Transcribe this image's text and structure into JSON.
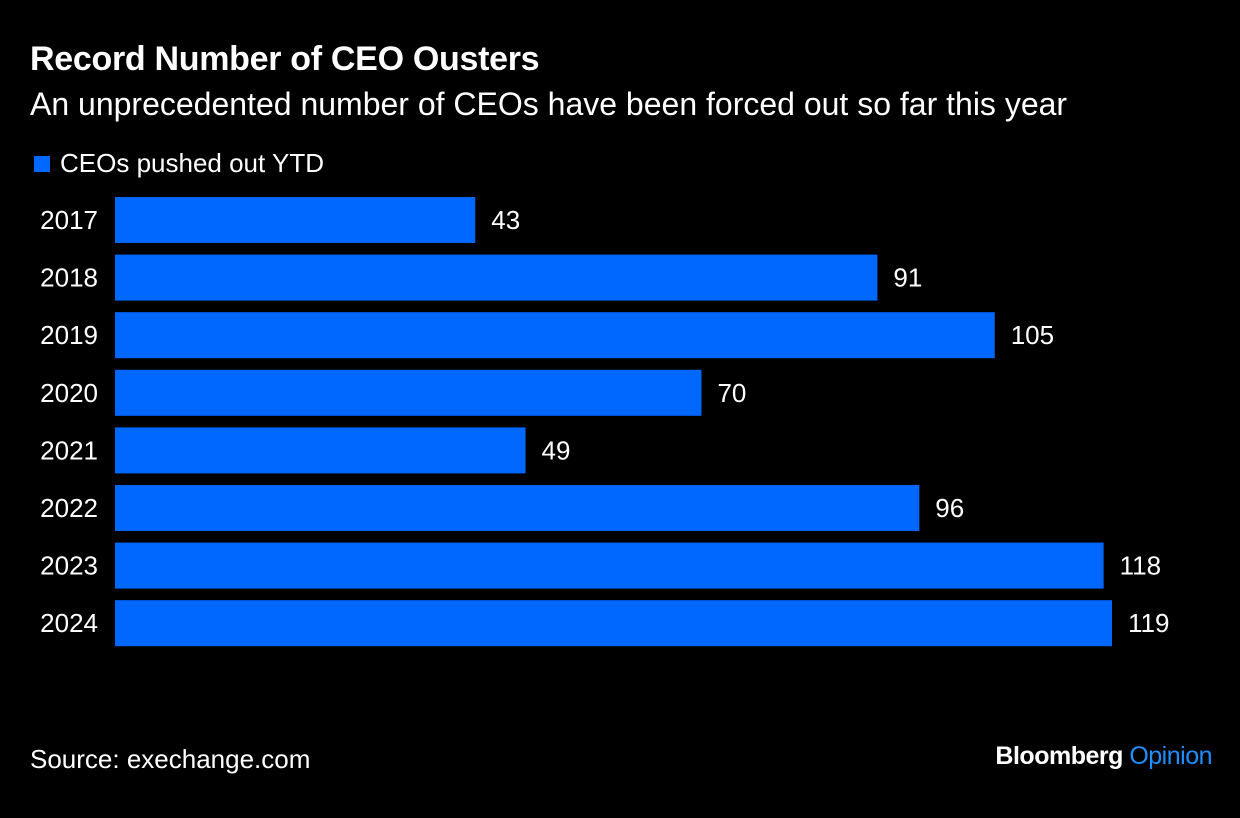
{
  "colors": {
    "background": "#000000",
    "bar": "#0068ff",
    "text": "#ffffff",
    "brand_accent": "#1f8fff"
  },
  "header": {
    "title": "Record Number of CEO Ousters",
    "subtitle": "An unprecedented number of CEOs have been forced out so far this year"
  },
  "footer": {
    "source": "Source: exechange.com",
    "brand_main": "Bloomberg",
    "brand_accent": "Opinion"
  },
  "chart_data": {
    "type": "bar",
    "orientation": "horizontal",
    "categories": [
      "2017",
      "2018",
      "2019",
      "2020",
      "2021",
      "2022",
      "2023",
      "2024"
    ],
    "series": [
      {
        "name": "CEOs pushed out YTD",
        "values": [
          43,
          91,
          105,
          70,
          49,
          96,
          118,
          119
        ]
      }
    ],
    "xlim": [
      0,
      119
    ],
    "grid": false,
    "legend": "top-left",
    "data_labels": true
  }
}
